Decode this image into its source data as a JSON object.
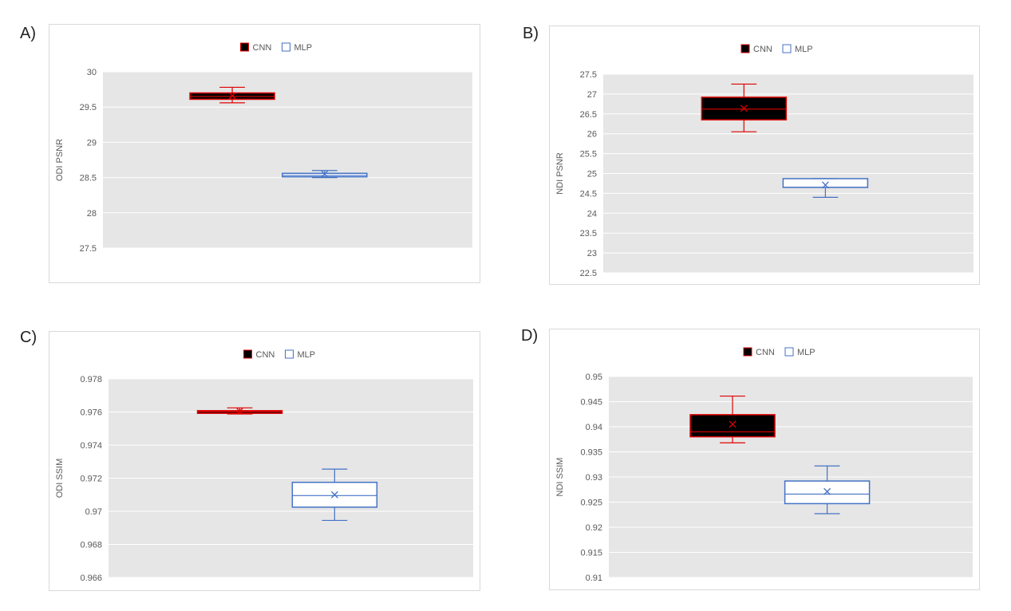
{
  "panels": [
    {
      "letter": "A)"
    },
    {
      "letter": "B)"
    },
    {
      "letter": "C)"
    },
    {
      "letter": "D)"
    }
  ],
  "legend": {
    "cnn": "CNN",
    "mlp": "MLP"
  },
  "colors": {
    "cnn_fill": "#000000",
    "cnn_stroke": "#e00000",
    "mlp_fill": "#ffffff",
    "mlp_stroke": "#4472c4",
    "plot_bg": "#e6e6e6",
    "grid": "#ffffff",
    "tick_text": "#595959"
  },
  "chart_data": [
    {
      "type": "box",
      "ylabel": "ODI PSNR",
      "ylim": [
        27.5,
        30
      ],
      "yticks": [
        "30",
        "29.5",
        "29",
        "28.5",
        "28",
        "27.5"
      ],
      "ytick_values": [
        30,
        29.5,
        29,
        28.5,
        28,
        27.5
      ],
      "series": [
        {
          "name": "CNN",
          "min": 29.56,
          "q1": 29.61,
          "median": 29.65,
          "q3": 29.7,
          "max": 29.78,
          "mean": 29.66
        },
        {
          "name": "MLP",
          "min": 28.5,
          "q1": 28.51,
          "median": 28.53,
          "q3": 28.56,
          "max": 28.6,
          "mean": 28.55
        }
      ]
    },
    {
      "type": "box",
      "ylabel": "NDI PSNR",
      "ylim": [
        22.5,
        27.5
      ],
      "yticks": [
        "27.5",
        "27",
        "26.5",
        "26",
        "25.5",
        "25",
        "24.5",
        "24",
        "23.5",
        "23",
        "22.5"
      ],
      "ytick_values": [
        27.5,
        27,
        26.5,
        26,
        25.5,
        25,
        24.5,
        24,
        23.5,
        23,
        22.5
      ],
      "series": [
        {
          "name": "CNN",
          "min": 26.05,
          "q1": 26.35,
          "median": 26.62,
          "q3": 26.92,
          "max": 27.25,
          "mean": 26.64
        },
        {
          "name": "MLP",
          "min": 24.4,
          "q1": 24.65,
          "median": 24.65,
          "q3": 24.87,
          "max": 24.87,
          "mean": 24.71
        }
      ]
    },
    {
      "type": "box",
      "ylabel": "ODI SSIM",
      "ylim": [
        0.966,
        0.978
      ],
      "yticks": [
        "0.978",
        "0.976",
        "0.974",
        "0.972",
        "0.97",
        "0.968",
        "0.966"
      ],
      "ytick_values": [
        0.978,
        0.976,
        0.974,
        0.972,
        0.97,
        0.968,
        0.966
      ],
      "series": [
        {
          "name": "CNN",
          "min": 0.97588,
          "q1": 0.97592,
          "median": 0.97602,
          "q3": 0.97608,
          "max": 0.97625,
          "mean": 0.97605
        },
        {
          "name": "MLP",
          "min": 0.96945,
          "q1": 0.97025,
          "median": 0.97095,
          "q3": 0.97175,
          "max": 0.97255,
          "mean": 0.971
        }
      ]
    },
    {
      "type": "box",
      "ylabel": "NDI SSIM",
      "ylim": [
        0.91,
        0.95
      ],
      "yticks": [
        "0.95",
        "0.945",
        "0.94",
        "0.935",
        "0.93",
        "0.925",
        "0.92",
        "0.915",
        "0.91"
      ],
      "ytick_values": [
        0.95,
        0.945,
        0.94,
        0.935,
        0.93,
        0.925,
        0.92,
        0.915,
        0.91
      ],
      "series": [
        {
          "name": "CNN",
          "min": 0.9368,
          "q1": 0.938,
          "median": 0.939,
          "q3": 0.9424,
          "max": 0.9461,
          "mean": 0.9405
        },
        {
          "name": "MLP",
          "min": 0.9227,
          "q1": 0.9247,
          "median": 0.9266,
          "q3": 0.9292,
          "max": 0.9322,
          "mean": 0.9271
        }
      ]
    }
  ]
}
